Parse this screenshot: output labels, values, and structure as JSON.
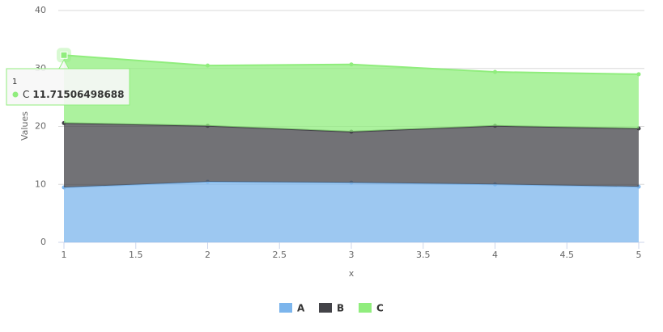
{
  "chart_data": {
    "type": "stacked_area",
    "x_label": "x",
    "y_label": "Values",
    "x": [
      1,
      2,
      3,
      4,
      5
    ],
    "series": [
      {
        "name": "A",
        "color": "#7cb5ec",
        "values": [
          9.48,
          10.45,
          10.3,
          10.0,
          9.6
        ]
      },
      {
        "name": "B",
        "color": "#434348",
        "values": [
          11.1,
          9.65,
          8.8,
          10.1,
          10.05
        ]
      },
      {
        "name": "C",
        "color": "#90ed7d",
        "values": [
          11.71506498688,
          10.4,
          11.6,
          9.3,
          9.35
        ]
      }
    ],
    "xlim": [
      1,
      5
    ],
    "xticks": [
      1,
      1.5,
      2,
      2.5,
      3,
      3.5,
      4,
      4.5,
      5
    ],
    "ylim": [
      0,
      40
    ],
    "yticks": [
      0,
      10,
      20,
      30,
      40
    ],
    "grid": true,
    "legend": "bottom",
    "tooltip": {
      "series": 2,
      "point": 0
    }
  }
}
